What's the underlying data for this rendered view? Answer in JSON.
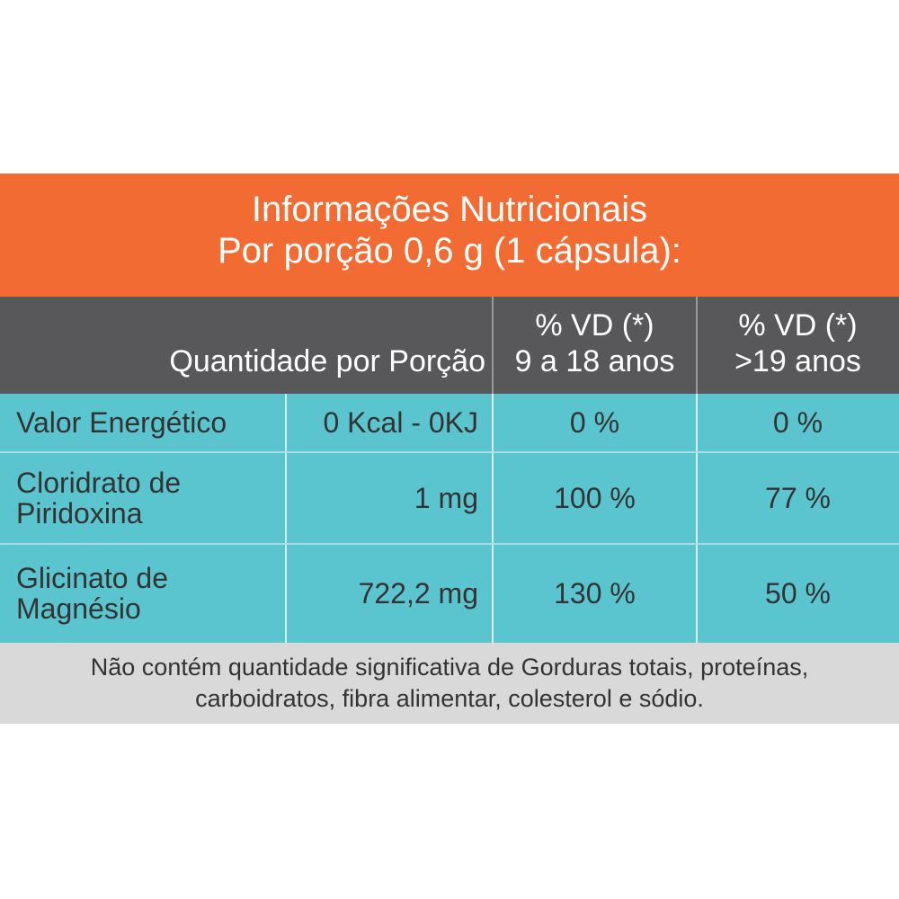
{
  "header": {
    "title": [
      "Informações Nutricionais",
      "Por porção 0,6 g (1 cápsula):"
    ]
  },
  "table": {
    "columns": {
      "quantity": "Quantidade por Porção",
      "vd_9_18": [
        "% VD (*)",
        "9 a 18 anos"
      ],
      "vd_19": [
        "% VD (*)",
        ">19 anos"
      ]
    },
    "rows": [
      {
        "name": [
          "Valor Energético"
        ],
        "amount": "0 Kcal - 0KJ",
        "vd_9_18": "0 %",
        "vd_19": "0 %"
      },
      {
        "name": [
          "Cloridrato de",
          "Piridoxina"
        ],
        "amount": "1 mg",
        "vd_9_18": "100 %",
        "vd_19": "77 %"
      },
      {
        "name": [
          "Glicinato de",
          "Magnésio"
        ],
        "amount": "722,2 mg",
        "vd_9_18": "130 %",
        "vd_19": "50 %"
      }
    ]
  },
  "footer": [
    "Não contém quantidade significativa de Gorduras totais, proteínas,",
    "carboidratos, fibra alimentar, colesterol e sódio."
  ]
}
